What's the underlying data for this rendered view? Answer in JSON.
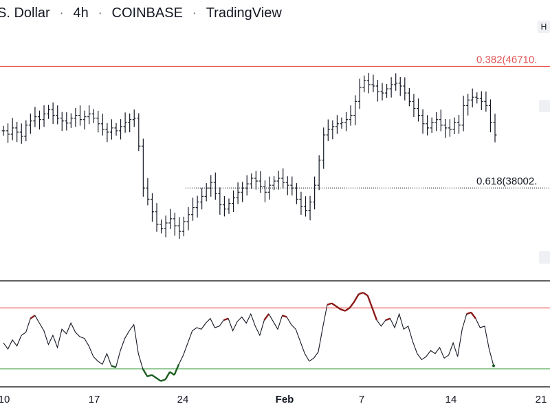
{
  "header": {
    "symbol_fragment": "S. Dollar",
    "interval": "4h",
    "exchange": "COINBASE",
    "source": "TradingView",
    "side_tag": "H"
  },
  "colors": {
    "fib_red": "#e53935",
    "oversold_green": "#43a047",
    "candle": "#131722",
    "overbought_seg": "#8b1a1a",
    "oversold_seg": "#1b5e20",
    "separator": "#000000",
    "fib_label_red": "#e05555"
  },
  "chart_data": [
    {
      "type": "ohlc",
      "title": "",
      "fib_levels": [
        {
          "label": "0.382(46710.",
          "ratio": 0.382,
          "price": 46710,
          "color": "#e53935",
          "style": "solid"
        },
        {
          "label": "0.618(38002.",
          "ratio": 0.618,
          "price": 38002,
          "color": "#131722",
          "style": "dotted"
        }
      ],
      "x_ticks": [
        "10",
        "17",
        "24",
        "Feb",
        "7",
        "14",
        "21"
      ],
      "dates_approx": {
        "start": "2022-01-09",
        "end": "2022-02-17",
        "bar_interval_hours": 4
      },
      "y_range_approx": [
        32000,
        48500
      ],
      "grid": false,
      "note_series": "Close path (approx. prices, 4h bars, sampled)",
      "series": [
        {
          "name": "",
          "values": [
            42100,
            41850,
            42300,
            42000,
            41700,
            42500,
            42800,
            43100,
            42900,
            43300,
            43600,
            43200,
            43000,
            42800,
            42650,
            43000,
            43200,
            42900,
            43100,
            43300,
            43000,
            42600,
            42200,
            42000,
            42300,
            42100,
            42400,
            42700,
            42900,
            43000,
            41000,
            38000,
            37200,
            36300,
            35400,
            35100,
            35500,
            35800,
            35300,
            34900,
            35600,
            36100,
            36600,
            37000,
            37400,
            38000,
            38400,
            37600,
            36800,
            36500,
            36900,
            37300,
            37700,
            38000,
            38300,
            38700,
            38500,
            38100,
            37700,
            38200,
            38500,
            38700,
            38400,
            38200,
            38000,
            37200,
            36700,
            36400,
            37000,
            38200,
            40000,
            41800,
            42200,
            42400,
            42600,
            42700,
            42900,
            43200,
            44200,
            45200,
            45700,
            45400,
            45300,
            44900,
            44800,
            45100,
            45400,
            45500,
            45300,
            44800,
            44200,
            43700,
            43200,
            42600,
            42300,
            42700,
            42900,
            42500,
            42300,
            42200,
            42700,
            42500,
            43900,
            44300,
            44500,
            44400,
            44200,
            43900,
            42700,
            41800
          ]
        }
      ]
    },
    {
      "type": "line",
      "title": "",
      "x_ticks": [
        "10",
        "17",
        "24",
        "Feb",
        "7",
        "14",
        "21"
      ],
      "bands": {
        "upper": 70,
        "lower": 30
      },
      "y_range": [
        20,
        85
      ],
      "series": [
        {
          "name": "",
          "values": [
            47,
            43,
            49,
            45,
            52,
            54,
            63,
            65,
            60,
            55,
            46,
            52,
            44,
            56,
            53,
            60,
            54,
            51,
            50,
            45,
            38,
            35,
            33,
            40,
            32,
            31,
            42,
            50,
            55,
            59,
            40,
            30,
            25,
            26,
            24,
            22,
            23,
            28,
            26,
            33,
            39,
            47,
            55,
            57,
            56,
            60,
            63,
            57,
            58,
            62,
            63,
            55,
            61,
            64,
            60,
            66,
            58,
            52,
            62,
            66,
            61,
            56,
            65,
            64,
            59,
            56,
            48,
            40,
            35,
            37,
            41,
            57,
            72,
            73,
            71,
            69,
            68,
            70,
            74,
            79,
            80,
            78,
            70,
            62,
            58,
            62,
            63,
            57,
            66,
            56,
            58,
            48,
            40,
            36,
            38,
            42,
            40,
            44,
            37,
            39,
            47,
            38,
            56,
            66,
            67,
            63,
            57,
            58,
            43,
            32
          ]
        }
      ]
    }
  ]
}
